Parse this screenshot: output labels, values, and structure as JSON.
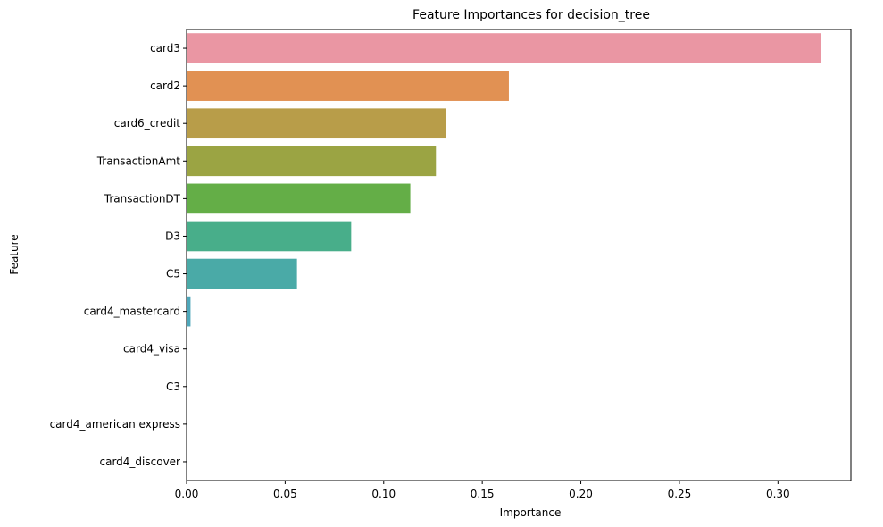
{
  "chart_data": {
    "type": "bar",
    "orientation": "horizontal",
    "title": "Feature Importances for decision_tree",
    "xlabel": "Importance",
    "ylabel": "Feature",
    "xlim": [
      0,
      0.337
    ],
    "xticks": [
      "0.00",
      "0.05",
      "0.10",
      "0.15",
      "0.20",
      "0.25",
      "0.30"
    ],
    "grid": false,
    "categories": [
      "card3",
      "card2",
      "card6_credit",
      "TransactionAmt",
      "TransactionDT",
      "D3",
      "C5",
      "card4_mastercard",
      "card4_visa",
      "C3",
      "card4_american express",
      "card4_discover"
    ],
    "values": [
      0.322,
      0.1635,
      0.1315,
      0.1265,
      0.1135,
      0.0835,
      0.056,
      0.002,
      0,
      0,
      0,
      0
    ],
    "colors": [
      "#ea96a3",
      "#e19153",
      "#b89d49",
      "#9ba443",
      "#64ae47",
      "#48ae8a",
      "#4aaaa7",
      "#4ea7ba",
      "#71a0db",
      "#a28ee3",
      "#d27fe1",
      "#e58ac1"
    ]
  }
}
